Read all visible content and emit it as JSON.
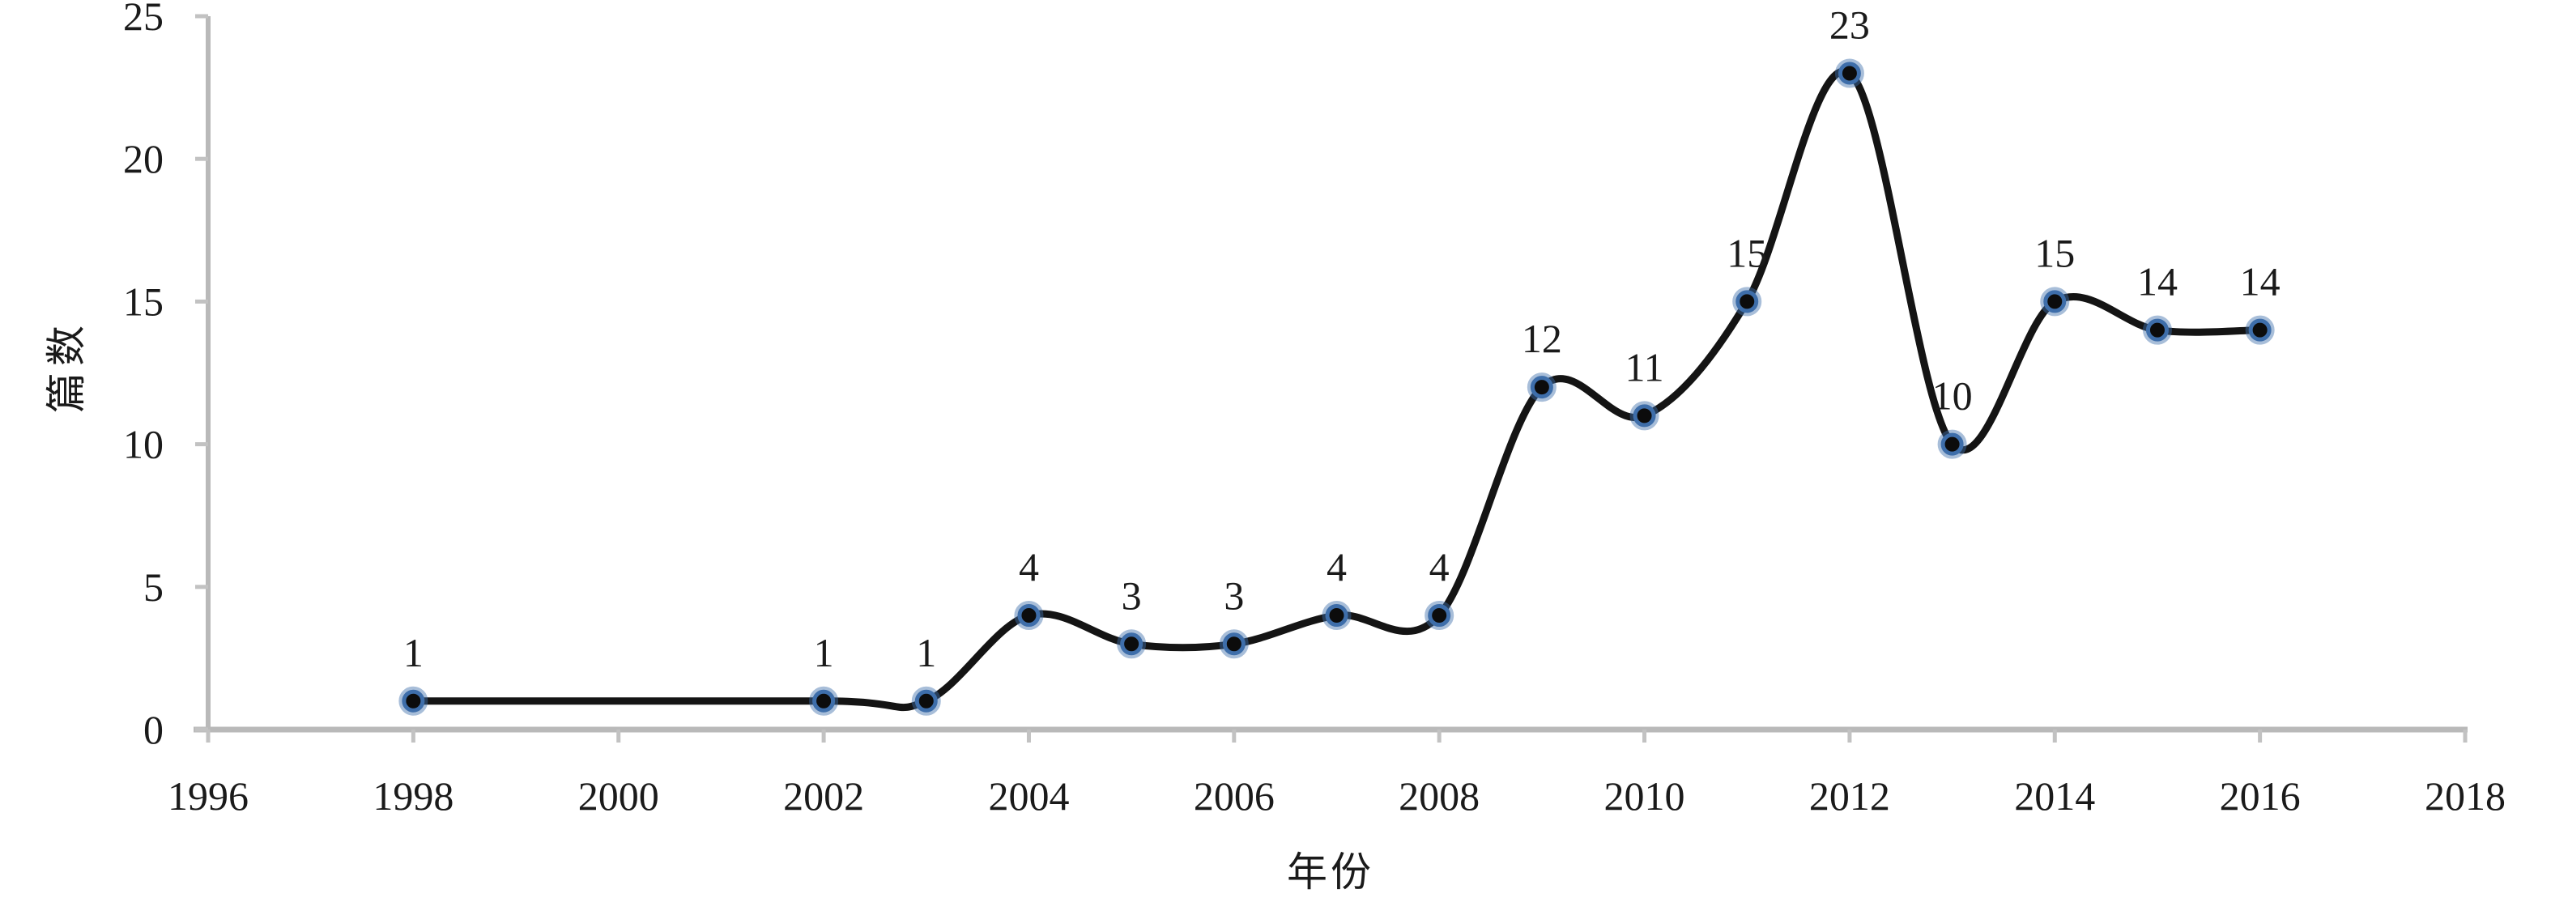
{
  "chart_data": {
    "type": "line",
    "title": "",
    "xlabel": "年份",
    "ylabel": "篇数",
    "x": [
      1998,
      2002,
      2003,
      2004,
      2005,
      2006,
      2007,
      2008,
      2009,
      2010,
      2011,
      2012,
      2013,
      2014,
      2015,
      2016
    ],
    "values": [
      1,
      1,
      1,
      4,
      3,
      3,
      4,
      4,
      12,
      11,
      15,
      23,
      10,
      15,
      14,
      14
    ],
    "point_labels": [
      "1",
      "1",
      "1",
      "4",
      "3",
      "3",
      "4",
      "4",
      "12",
      "11",
      "15",
      "23",
      "10",
      "15",
      "14",
      "14"
    ],
    "series_name": "篇数",
    "xlim": [
      1996,
      2018
    ],
    "ylim": [
      0,
      25
    ],
    "x_ticks": [
      1996,
      1998,
      2000,
      2002,
      2004,
      2006,
      2008,
      2010,
      2012,
      2014,
      2016,
      2018
    ],
    "y_ticks": [
      0,
      5,
      10,
      15,
      20,
      25
    ],
    "smooth": true,
    "grid": false,
    "legend": "none",
    "colors": {
      "line": "#141414",
      "marker_core": "#0c0c0c",
      "marker_ring": "#3e6eaa",
      "marker_halo": "rgba(63,110,170,0.45)",
      "axis": "#b9b9b9",
      "tick": "#c2c2c2",
      "text": "#1a1a1a"
    }
  }
}
